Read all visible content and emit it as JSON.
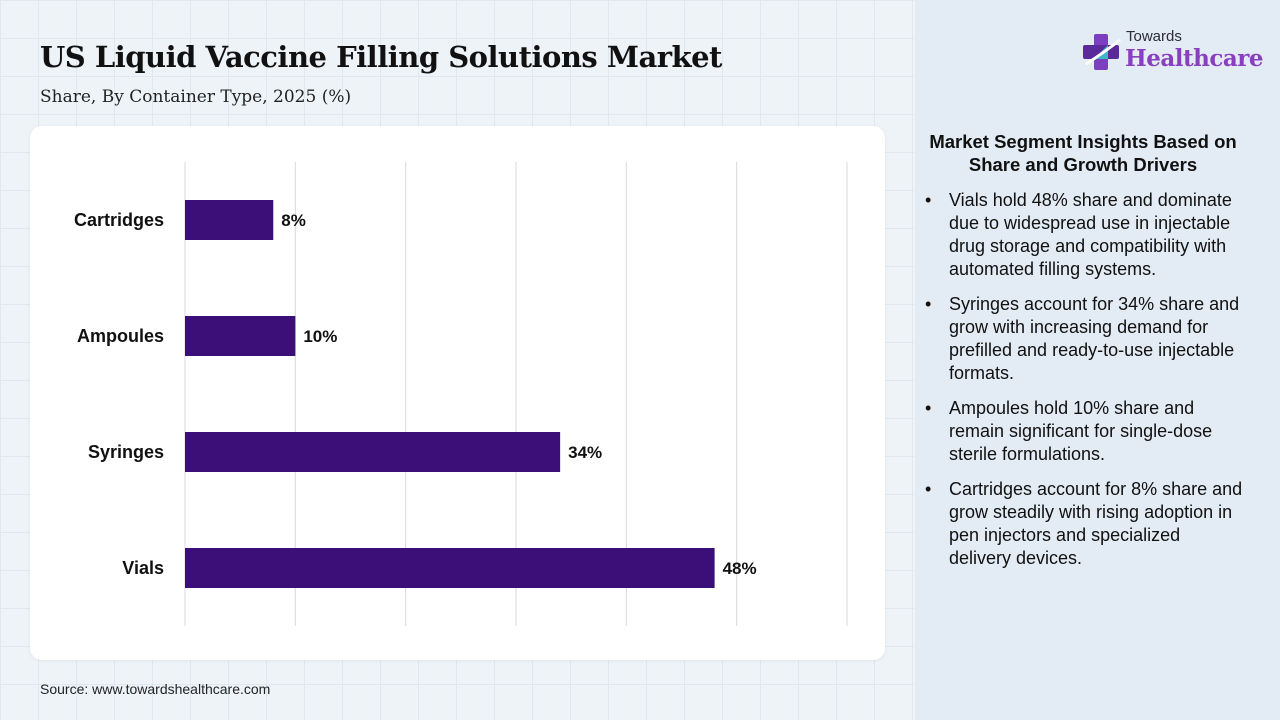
{
  "header": {
    "title": "US Liquid Vaccine Filling Solutions Market",
    "subtitle": "Share, By Container Type, 2025 (%)"
  },
  "logo": {
    "top_text": "Towards",
    "main_text": "Healthcare",
    "icon": "medical-cross-icon"
  },
  "chart_data": {
    "type": "bar",
    "orientation": "horizontal",
    "categories": [
      "Cartridges",
      "Ampoules",
      "Syringes",
      "Vials"
    ],
    "values": [
      8,
      10,
      34,
      48
    ],
    "data_labels": [
      "8%",
      "10%",
      "34%",
      "48%"
    ],
    "title": "",
    "xlabel": "",
    "ylabel": "",
    "xlim": [
      0,
      60
    ],
    "grid": true,
    "bar_color": "#3c0f78"
  },
  "insights": {
    "title": "Market Segment Insights Based on Share and Growth Drivers",
    "bullet": "•",
    "items": [
      "Vials hold 48% share and dominate due to widespread use in injectable drug storage and compatibility with automated filling systems.",
      "Syringes account for 34% share and grow with increasing demand for prefilled and ready-to-use injectable formats.",
      "Ampoules hold 10% share and remain significant for single-dose sterile formulations.",
      "Cartridges account for 8% share and grow steadily with rising adoption in pen injectors and specialized delivery devices."
    ]
  },
  "footer": {
    "source": "Source: www.towardshealthcare.com"
  },
  "colors": {
    "bar": "#3c0f78",
    "logo_accent": "#8a3fc0",
    "panel_bg": "#e3ebf4"
  }
}
